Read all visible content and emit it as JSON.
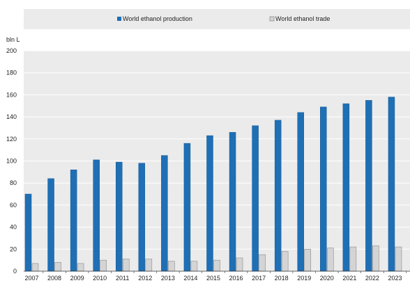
{
  "colors": {
    "production": "#1f6fb5",
    "production_stroke": "#155a96",
    "trade": "#d4d4d4",
    "trade_stroke": "#8c8c8c",
    "grid": "#ffffff",
    "plot_bg": "#ebebeb",
    "legend_bg": "#ebebeb"
  },
  "chart_data": {
    "type": "bar",
    "title": "",
    "xlabel": "",
    "ylabel": "bln L",
    "ylim": [
      0,
      200
    ],
    "yticks": [
      0,
      20,
      40,
      60,
      80,
      100,
      120,
      140,
      160,
      180,
      200
    ],
    "grid": true,
    "legend_position": "top",
    "categories": [
      "2007",
      "2008",
      "2009",
      "2010",
      "2011",
      "2012",
      "2013",
      "2014",
      "2015",
      "2016",
      "2017",
      "2018",
      "2019",
      "2020",
      "2021",
      "2022",
      "2023"
    ],
    "series": [
      {
        "name": "World ethanol production",
        "color": "#1f6fb5",
        "values": [
          70,
          84,
          92,
          101,
          99,
          98,
          105,
          116,
          123,
          126,
          132,
          137,
          144,
          149,
          152,
          155,
          158
        ]
      },
      {
        "name": "World ethanol trade",
        "color": "#d4d4d4",
        "values": [
          7,
          8,
          7,
          10,
          11,
          11,
          9,
          9,
          10,
          12,
          15,
          18,
          20,
          21,
          22,
          23,
          22
        ]
      }
    ]
  }
}
